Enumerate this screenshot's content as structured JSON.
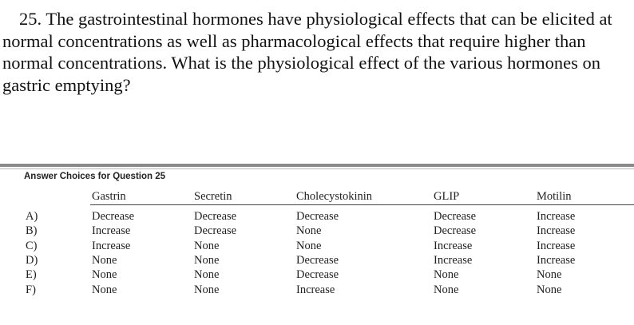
{
  "question": {
    "lines": [
      "25. The gastrointestinal hormones have physiological effects that can be elicited at",
      "normal concentrations as well as pharmacological effects that require higher than",
      "normal concentrations. What is the physiological effect of the various hormones on",
      "gastric emptying?"
    ]
  },
  "table": {
    "caption": "Answer Choices for Question 25",
    "headers": [
      "Gastrin",
      "Secretin",
      "Cholecystokinin",
      "GLIP",
      "Motilin"
    ],
    "rows": [
      {
        "letter": "A)",
        "values": [
          "Decrease",
          "Decrease",
          "Decrease",
          "Decrease",
          "Increase"
        ]
      },
      {
        "letter": "B)",
        "values": [
          "Increase",
          "Decrease",
          "None",
          "Decrease",
          "Increase"
        ]
      },
      {
        "letter": "C)",
        "values": [
          "Increase",
          "None",
          "None",
          "Increase",
          "Increase"
        ]
      },
      {
        "letter": "D)",
        "values": [
          "None",
          "None",
          "Decrease",
          "Increase",
          "Increase"
        ]
      },
      {
        "letter": "E)",
        "values": [
          "None",
          "None",
          "Decrease",
          "None",
          "None"
        ]
      },
      {
        "letter": "F)",
        "values": [
          "None",
          "None",
          "Increase",
          "None",
          "None"
        ]
      }
    ]
  }
}
